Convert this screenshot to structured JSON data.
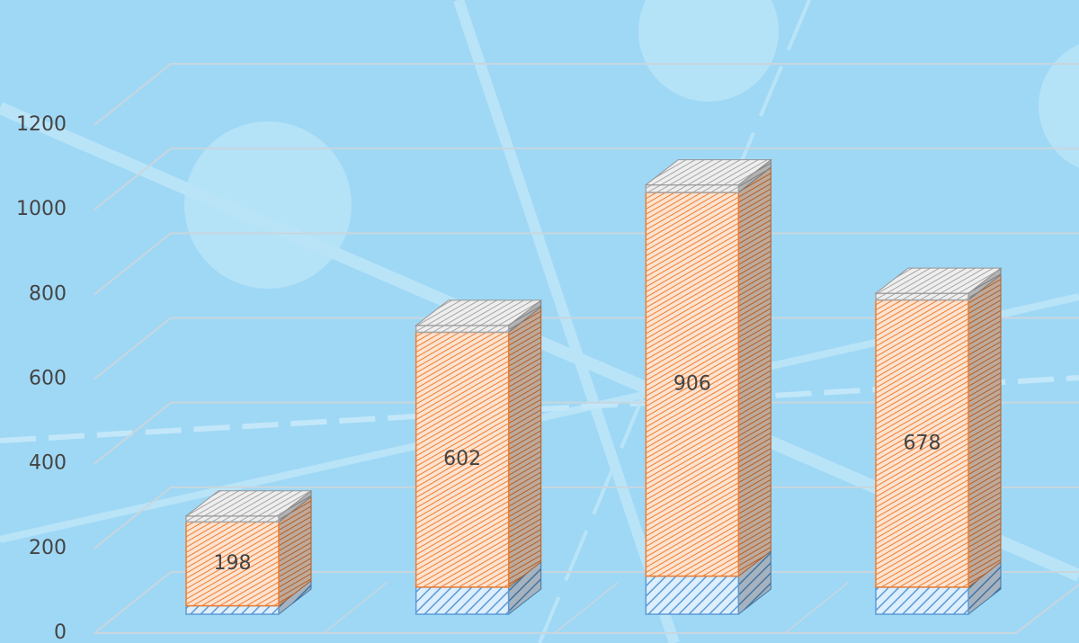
{
  "chart_data": {
    "type": "bar3d_stacked",
    "categories": [
      null,
      null,
      null,
      null
    ],
    "series": [
      {
        "color": "#5b9bd5",
        "values": [
          20,
          64,
          90,
          64
        ]
      },
      {
        "color": "#ed7d31",
        "values": [
          198,
          602,
          906,
          678
        ],
        "data_labels": true
      },
      {
        "color": "#a5a5a5",
        "values": [
          14,
          16,
          18,
          16
        ]
      }
    ],
    "ylim": [
      0,
      1200
    ],
    "yticks": [
      0,
      200,
      400,
      600,
      800,
      1000,
      1200
    ],
    "grid": true
  }
}
